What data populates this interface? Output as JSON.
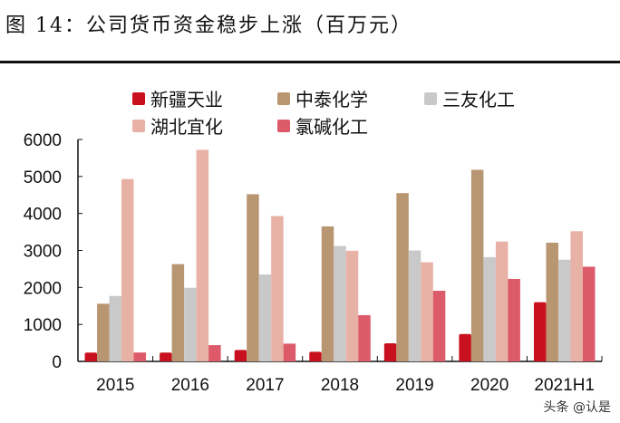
{
  "title": "图 14：公司货币资金稳步上涨（百万元）",
  "watermark": "头条 @认是",
  "chart_data": {
    "type": "bar",
    "title": "图 14：公司货币资金稳步上涨（百万元）",
    "categories": [
      "2015",
      "2016",
      "2017",
      "2018",
      "2019",
      "2020",
      "2021H1"
    ],
    "ylim": [
      0,
      6000
    ],
    "yticks": [
      0,
      1000,
      2000,
      3000,
      4000,
      5000,
      6000
    ],
    "grid": false,
    "legend_placement": "top",
    "series": [
      {
        "name": "新疆天业",
        "color": "#c8101e",
        "values": [
          240,
          240,
          310,
          260,
          490,
          740,
          1600
        ]
      },
      {
        "name": "中泰化学",
        "color": "#b99672",
        "values": [
          1560,
          2630,
          4520,
          3650,
          4550,
          5180,
          3210
        ]
      },
      {
        "name": "三友化工",
        "color": "#c9c9c9",
        "values": [
          1770,
          1990,
          2350,
          3120,
          3000,
          2820,
          2750
        ]
      },
      {
        "name": "湖北宜化",
        "color": "#e8b1a6",
        "values": [
          4930,
          5720,
          3930,
          2990,
          2680,
          3240,
          3520
        ]
      },
      {
        "name": "氯碱化工",
        "color": "#dc5a6a",
        "values": [
          240,
          440,
          480,
          1250,
          1910,
          2230,
          2560
        ]
      }
    ]
  }
}
